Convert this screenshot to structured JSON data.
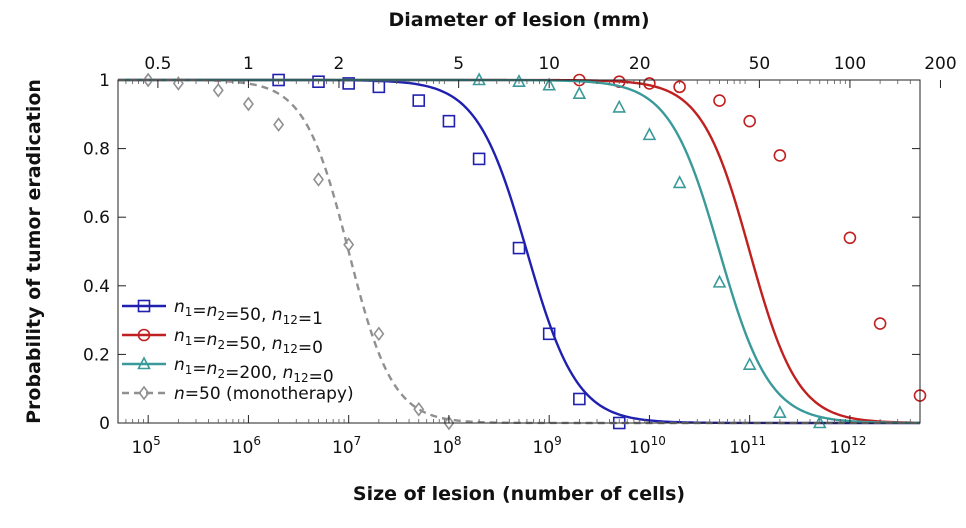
{
  "chart_data": {
    "type": "line",
    "title": "",
    "xlabel": "Size of lesion (number of cells)",
    "x2label": "Diameter of lesion (mm)",
    "ylabel": "Probability of tumor eradication",
    "x_scale": "log",
    "xlim": [
      50000,
      5000000000000
    ],
    "ylim": [
      0,
      1
    ],
    "x_ticks": [
      {
        "value": 100000,
        "base": "10",
        "exp": "5"
      },
      {
        "value": 1000000,
        "base": "10",
        "exp": "6"
      },
      {
        "value": 10000000,
        "base": "10",
        "exp": "7"
      },
      {
        "value": 100000000,
        "base": "10",
        "exp": "8"
      },
      {
        "value": 1000000000,
        "base": "10",
        "exp": "9"
      },
      {
        "value": 10000000000,
        "base": "10",
        "exp": "10"
      },
      {
        "value": 100000000000,
        "base": "10",
        "exp": "11"
      },
      {
        "value": 1000000000000,
        "base": "10",
        "exp": "12"
      }
    ],
    "y_ticks": [
      {
        "value": 0,
        "label": "0"
      },
      {
        "value": 0.2,
        "label": "0.2"
      },
      {
        "value": 0.4,
        "label": "0.4"
      },
      {
        "value": 0.6,
        "label": "0.6"
      },
      {
        "value": 0.8,
        "label": "0.8"
      },
      {
        "value": 1,
        "label": "1"
      }
    ],
    "x2_ticks": [
      {
        "value": 0.5,
        "label": "0.5"
      },
      {
        "value": 1,
        "label": "1"
      },
      {
        "value": 2,
        "label": "2"
      },
      {
        "value": 5,
        "label": "5"
      },
      {
        "value": 10,
        "label": "10"
      },
      {
        "value": 20,
        "label": "20"
      },
      {
        "value": 50,
        "label": "50"
      },
      {
        "value": 100,
        "label": "100"
      },
      {
        "value": 200,
        "label": "200"
      }
    ],
    "legend_position": "bottom-left",
    "series": [
      {
        "name": "n1=n2=50, n12=1",
        "legend": [
          {
            "t": "n",
            "i": true
          },
          {
            "t": "1",
            "sub": true
          },
          {
            "t": "="
          },
          {
            "t": "n",
            "i": true
          },
          {
            "t": "2",
            "sub": true
          },
          {
            "t": "=50,  "
          },
          {
            "t": "n",
            "i": true
          },
          {
            "t": "12",
            "sub": true
          },
          {
            "t": "=1"
          }
        ],
        "color": "#2020b0",
        "marker": "square",
        "dashed": false,
        "midpoint": 600000000,
        "width": 0.25,
        "points": [
          {
            "x": 2000000,
            "y": 1.0
          },
          {
            "x": 5000000,
            "y": 0.995
          },
          {
            "x": 10000000,
            "y": 0.99
          },
          {
            "x": 20000000,
            "y": 0.98
          },
          {
            "x": 50000000,
            "y": 0.94
          },
          {
            "x": 100000000,
            "y": 0.88
          },
          {
            "x": 200000000,
            "y": 0.77
          },
          {
            "x": 500000000,
            "y": 0.51
          },
          {
            "x": 1000000000,
            "y": 0.26
          },
          {
            "x": 2000000000,
            "y": 0.07
          },
          {
            "x": 5000000000,
            "y": 0.0
          }
        ]
      },
      {
        "name": "n1=n2=50, n12=0",
        "legend": [
          {
            "t": "n",
            "i": true
          },
          {
            "t": "1",
            "sub": true
          },
          {
            "t": "="
          },
          {
            "t": "n",
            "i": true
          },
          {
            "t": "2",
            "sub": true
          },
          {
            "t": "=50,  "
          },
          {
            "t": "n",
            "i": true
          },
          {
            "t": "12",
            "sub": true
          },
          {
            "t": "=0"
          }
        ],
        "color": "#c02020",
        "marker": "circle",
        "dashed": false,
        "midpoint": 100000000000,
        "width": 0.24,
        "points": [
          {
            "x": 2000000000,
            "y": 1.0
          },
          {
            "x": 5000000000,
            "y": 0.995
          },
          {
            "x": 10000000000,
            "y": 0.99
          },
          {
            "x": 20000000000,
            "y": 0.98
          },
          {
            "x": 50000000000,
            "y": 0.94
          },
          {
            "x": 100000000000,
            "y": 0.88
          },
          {
            "x": 200000000000,
            "y": 0.78
          },
          {
            "x": 1000000000000,
            "y": 0.54
          },
          {
            "x": 2000000000000,
            "y": 0.29
          },
          {
            "x": 5000000000000,
            "y": 0.08
          },
          {
            "x": 10000000000000,
            "y": 0.0
          }
        ]
      },
      {
        "name": "n1=n2=200, n12=0",
        "legend": [
          {
            "t": "n",
            "i": true
          },
          {
            "t": "1",
            "sub": true
          },
          {
            "t": "="
          },
          {
            "t": "n",
            "i": true
          },
          {
            "t": "2",
            "sub": true
          },
          {
            "t": "=200,  "
          },
          {
            "t": "n",
            "i": true
          },
          {
            "t": "12",
            "sub": true
          },
          {
            "t": "=0"
          }
        ],
        "color": "#3a9a9a",
        "marker": "triangle",
        "dashed": false,
        "midpoint": 50000000000,
        "width": 0.25,
        "points": [
          {
            "x": 200000000,
            "y": 1.0
          },
          {
            "x": 500000000,
            "y": 0.995
          },
          {
            "x": 1000000000,
            "y": 0.985
          },
          {
            "x": 2000000000,
            "y": 0.96
          },
          {
            "x": 5000000000,
            "y": 0.92
          },
          {
            "x": 10000000000,
            "y": 0.84
          },
          {
            "x": 20000000000,
            "y": 0.7
          },
          {
            "x": 50000000000,
            "y": 0.41
          },
          {
            "x": 100000000000,
            "y": 0.17
          },
          {
            "x": 200000000000,
            "y": 0.03
          },
          {
            "x": 500000000000,
            "y": 0.0
          }
        ]
      },
      {
        "name": "n=50 (monotherapy)",
        "legend": [
          {
            "t": "n",
            "i": true
          },
          {
            "t": "=50 (monotherapy)"
          }
        ],
        "color": "#909090",
        "marker": "diamond",
        "dashed": true,
        "midpoint": 10000000,
        "width": 0.22,
        "points": [
          {
            "x": 100000,
            "y": 1.0
          },
          {
            "x": 200000,
            "y": 0.99
          },
          {
            "x": 500000,
            "y": 0.97
          },
          {
            "x": 1000000,
            "y": 0.93
          },
          {
            "x": 2000000,
            "y": 0.87
          },
          {
            "x": 5000000,
            "y": 0.71
          },
          {
            "x": 10000000,
            "y": 0.52
          },
          {
            "x": 20000000,
            "y": 0.26
          },
          {
            "x": 50000000,
            "y": 0.04
          },
          {
            "x": 100000000,
            "y": 0.0
          }
        ]
      }
    ]
  }
}
